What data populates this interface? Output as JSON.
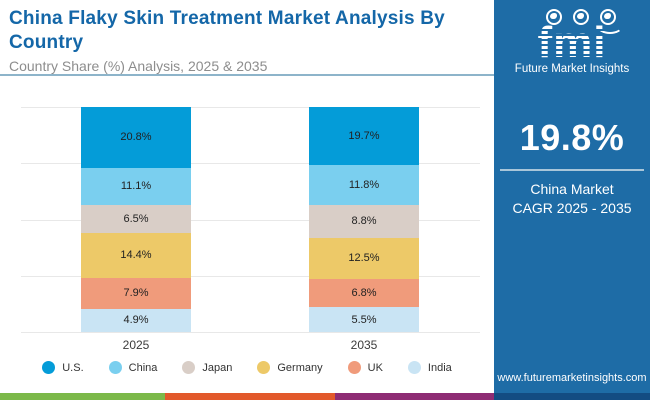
{
  "header": {
    "title": "China Flaky Skin Treatment Market Analysis By Country",
    "subtitle": "Country Share (%) Analysis, 2025 & 2035"
  },
  "sidebar": {
    "logo_text": "fmi",
    "logo_subtext": "Future Market Insights",
    "cagr_value": "19.8%",
    "cagr_label_line1": "China Market",
    "cagr_label_line2": "CAGR 2025 - 2035",
    "website": "www.futuremarketinsights.com"
  },
  "chart_data": {
    "type": "bar",
    "subtype": "stacked-column",
    "title": "China Flaky Skin Treatment Market Analysis By Country",
    "subtitle": "Country Share (%) Analysis, 2025 & 2035",
    "categories": [
      "2025",
      "2035"
    ],
    "series": [
      {
        "name": "U.S.",
        "color": "#049cd8",
        "values": [
          20.8,
          19.7
        ]
      },
      {
        "name": "China",
        "color": "#7acfef",
        "values": [
          11.1,
          11.8
        ]
      },
      {
        "name": "Japan",
        "color": "#d9cec7",
        "values": [
          6.5,
          8.8
        ]
      },
      {
        "name": "Germany",
        "color": "#edc968",
        "values": [
          14.4,
          12.5
        ]
      },
      {
        "name": "UK",
        "color": "#f09b7b",
        "values": [
          7.9,
          6.8
        ]
      },
      {
        "name": "India",
        "color": "#c9e4f4",
        "values": [
          4.9,
          5.5
        ]
      }
    ],
    "value_suffix": "%",
    "grid": true,
    "legend_position": "bottom",
    "ylabel": "",
    "xlabel": ""
  },
  "footer": {
    "stripe_colors": [
      "#7cb94a",
      "#e2592b",
      "#8e2c74",
      "#134c82"
    ]
  }
}
